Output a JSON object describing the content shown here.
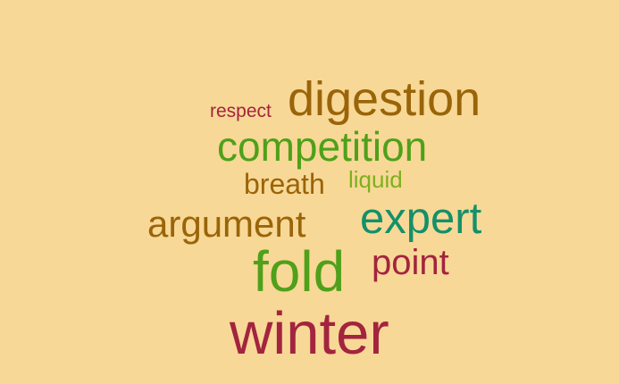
{
  "background_color": "#F8D896",
  "words": [
    {
      "key": "respect",
      "text": "respect",
      "color": "#A3243F"
    },
    {
      "key": "digestion",
      "text": "digestion",
      "color": "#9A6409"
    },
    {
      "key": "competition",
      "text": "competition",
      "color": "#4FA01A"
    },
    {
      "key": "breath",
      "text": "breath",
      "color": "#9A6409"
    },
    {
      "key": "liquid",
      "text": "liquid",
      "color": "#7FB01E"
    },
    {
      "key": "argument",
      "text": "argument",
      "color": "#9A6409"
    },
    {
      "key": "expert",
      "text": "expert",
      "color": "#14906A"
    },
    {
      "key": "fold",
      "text": "fold",
      "color": "#4FA01A"
    },
    {
      "key": "point",
      "text": "point",
      "color": "#A3243F"
    },
    {
      "key": "winter",
      "text": "winter",
      "color": "#A3243F"
    }
  ]
}
